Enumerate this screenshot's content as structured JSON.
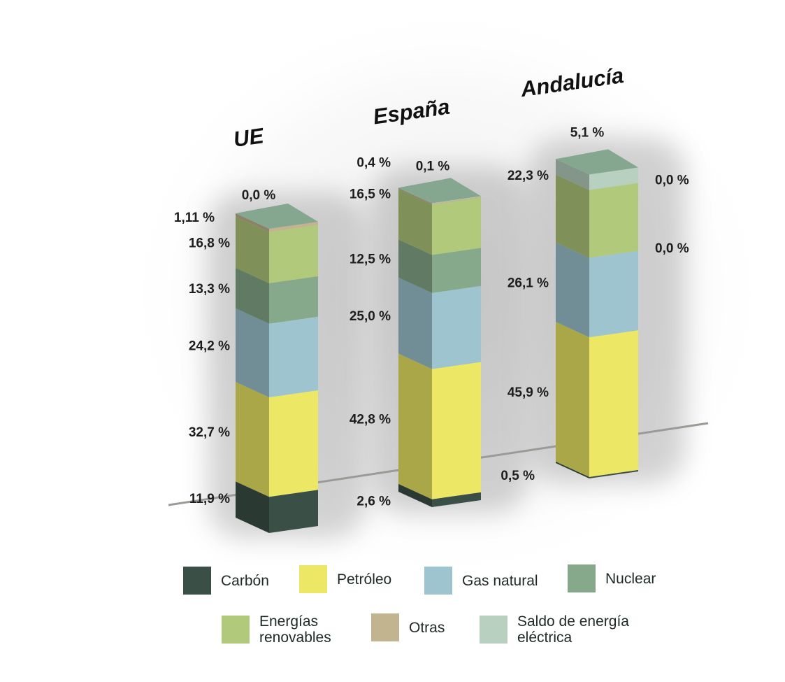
{
  "chart_data": {
    "type": "bar",
    "stacked": true,
    "categories": [
      "UE",
      "España",
      "Andalucía"
    ],
    "series": [
      {
        "name": "Carbón",
        "color": "#3a5047",
        "values": [
          11.9,
          2.6,
          0.5
        ]
      },
      {
        "name": "Petróleo",
        "color": "#ece866",
        "values": [
          32.7,
          42.8,
          45.9
        ]
      },
      {
        "name": "Gas natural",
        "color": "#9dc4cf",
        "values": [
          24.2,
          25.0,
          26.1
        ]
      },
      {
        "name": "Nuclear",
        "color": "#85a98a",
        "values": [
          13.3,
          12.5,
          0.0
        ]
      },
      {
        "name": "Energías\nrenovables",
        "color": "#b1c97b",
        "values": [
          16.8,
          16.5,
          22.3
        ]
      },
      {
        "name": "Otras",
        "color": "#c1b48f",
        "values": [
          1.11,
          0.4,
          0.0
        ]
      },
      {
        "name": "Saldo de energía\neléctrica",
        "color": "#b8d0c0",
        "values": [
          0.0,
          0.1,
          5.1
        ]
      }
    ],
    "labels": {
      "UE": [
        "11,9 %",
        "32,7 %",
        "24,2 %",
        "13,3 %",
        "16,8 %",
        "1,11 %",
        "0,0 %"
      ],
      "España": [
        "2,6 %",
        "42,8 %",
        "25,0 %",
        "12,5 %",
        "16,5 %",
        "0,4 %",
        "0,1 %"
      ],
      "Andalucía": [
        "0,5 %",
        "45,9 %",
        "26,1 %",
        "0,0 %",
        "22,3 %",
        "0,0 %",
        "5,1 %"
      ]
    },
    "legend": "bottom"
  }
}
